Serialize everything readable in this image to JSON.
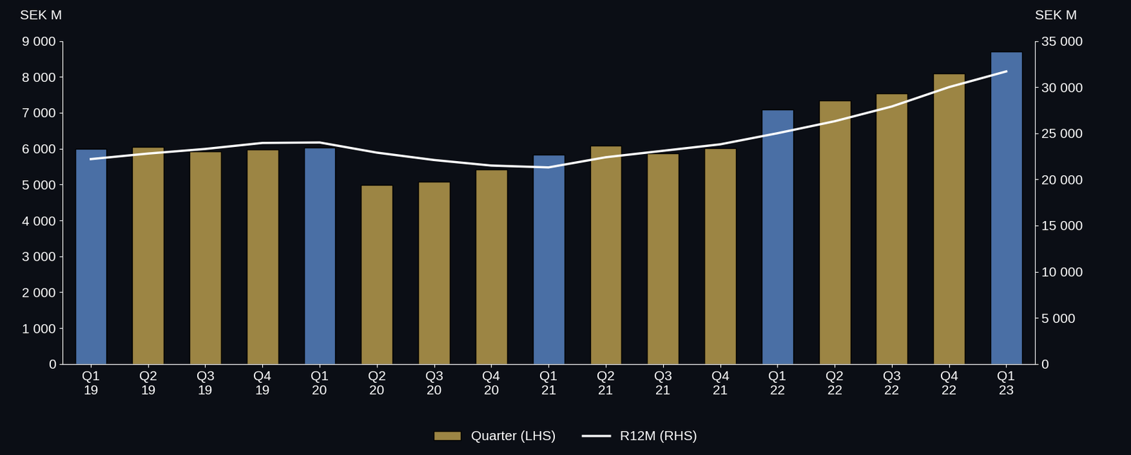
{
  "chart_data": {
    "type": "bar",
    "y_label": "SEK M",
    "y2_label": "SEK M",
    "categories": [
      "Q1\n19",
      "Q2\n19",
      "Q3\n19",
      "Q4\n19",
      "Q1\n20",
      "Q2\n20",
      "Q3\n20",
      "Q4\n20",
      "Q1\n21",
      "Q2\n21",
      "Q3\n21",
      "Q4\n21",
      "Q1\n22",
      "Q2\n22",
      "Q3\n22",
      "Q4\n22",
      "Q1\n23"
    ],
    "series": [
      {
        "name": "Quarter (LHS)",
        "type": "bar",
        "color": "#9c8544",
        "colors": [
          "#4a6fa5",
          "#9c8544",
          "#9c8544",
          "#9c8544",
          "#4a6fa5",
          "#9c8544",
          "#9c8544",
          "#9c8544",
          "#4a6fa5",
          "#9c8544",
          "#9c8544",
          "#9c8544",
          "#4a6fa5",
          "#9c8544",
          "#9c8544",
          "#9c8544",
          "#4a6fa5"
        ],
        "values": [
          5990,
          6050,
          5920,
          5980,
          6030,
          4990,
          5070,
          5420,
          5830,
          6080,
          5870,
          6020,
          7090,
          7340,
          7530,
          8100,
          8700
        ]
      },
      {
        "name": "R12M (RHS)",
        "type": "line",
        "color": "#ffffff",
        "axis": "y2",
        "values": [
          22200,
          22800,
          23300,
          23950,
          24000,
          22900,
          22100,
          21500,
          21300,
          22400,
          23100,
          23800,
          25000,
          26300,
          27900,
          30000,
          31700
        ]
      }
    ],
    "ylim": [
      0,
      9000
    ],
    "yticks": [
      0,
      {
        "value": 1000,
        "label": "1 000"
      },
      {
        "value": 2000,
        "label": "2 000"
      },
      {
        "value": 3000,
        "label": "3 000"
      },
      {
        "value": 4000,
        "label": "4 000"
      },
      {
        "value": 5000,
        "label": "5 000"
      },
      {
        "value": 6000,
        "label": "6 000"
      },
      {
        "value": 7000,
        "label": "7 000"
      },
      {
        "value": 8000,
        "label": "8 000"
      },
      {
        "value": 9000,
        "label": "9 000"
      }
    ],
    "y2lim": [
      0,
      35000
    ],
    "y2ticks": [
      0,
      {
        "value": 5000,
        "label": "5 000"
      },
      {
        "value": 10000,
        "label": "10 000"
      },
      {
        "value": 15000,
        "label": "15 000"
      },
      {
        "value": 20000,
        "label": "20 000"
      },
      {
        "value": 25000,
        "label": "25 000"
      },
      {
        "value": 30000,
        "label": "30 000"
      },
      {
        "value": 35000,
        "label": "35 000"
      }
    ],
    "legend": "lower center",
    "grid": false
  }
}
